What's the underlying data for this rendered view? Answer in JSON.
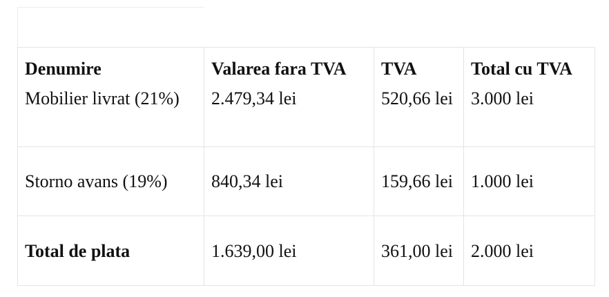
{
  "table": {
    "header": [
      "Denumire",
      "Valarea fara TVA",
      "TVA",
      "Total cu TVA"
    ],
    "rows": [
      [
        "Mobilier livrat (21%)",
        "2.479,34 lei",
        "520,66 lei",
        "3.000 lei"
      ],
      [
        "Storno avans (19%)",
        "840,34 lei",
        "159,66 lei",
        "1.000 lei"
      ],
      [
        "Total de plata",
        "1.639,00 lei",
        "361,00 lei",
        "2.000 lei"
      ]
    ]
  }
}
